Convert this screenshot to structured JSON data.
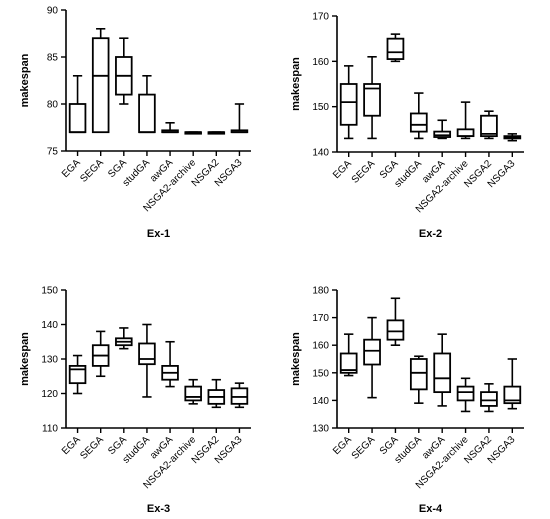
{
  "chart_data": [
    {
      "type": "box",
      "title": "Ex-1",
      "ylabel": "makespan",
      "ylim": [
        75,
        90
      ],
      "yticks": [
        75,
        80,
        85,
        90
      ],
      "categories": [
        "EGA",
        "SEGA",
        "SGA",
        "studGA",
        "awGA",
        "NSGA2-archive",
        "NSGA2",
        "NSGA3"
      ],
      "boxes": [
        {
          "min": 77,
          "q1": 77,
          "median": 77,
          "q3": 80,
          "max": 83
        },
        {
          "min": 77,
          "q1": 77,
          "median": 83,
          "q3": 87,
          "max": 88
        },
        {
          "min": 80,
          "q1": 81,
          "median": 83,
          "q3": 85,
          "max": 87
        },
        {
          "min": 77,
          "q1": 77,
          "median": 77,
          "q3": 81,
          "max": 83
        },
        {
          "min": 77,
          "q1": 77,
          "median": 77,
          "q3": 77.2,
          "max": 78
        },
        {
          "min": 77,
          "q1": 77,
          "median": 77,
          "q3": 77,
          "max": 77
        },
        {
          "min": 77,
          "q1": 77,
          "median": 77,
          "q3": 77,
          "max": 77
        },
        {
          "min": 77,
          "q1": 77,
          "median": 77,
          "q3": 77.2,
          "max": 80
        }
      ]
    },
    {
      "type": "box",
      "title": "Ex-2",
      "ylabel": "makespan",
      "ylim": [
        140,
        170
      ],
      "yticks": [
        140,
        150,
        160,
        170
      ],
      "categories": [
        "EGA",
        "SEGA",
        "SGA",
        "studGA",
        "awGA",
        "NSGA2-archive",
        "NSGA2",
        "NSGA3"
      ],
      "boxes": [
        {
          "min": 143,
          "q1": 146,
          "median": 151,
          "q3": 155,
          "max": 159
        },
        {
          "min": 143,
          "q1": 148,
          "median": 154,
          "q3": 155,
          "max": 161
        },
        {
          "min": 160,
          "q1": 160.5,
          "median": 162,
          "q3": 165,
          "max": 166
        },
        {
          "min": 143,
          "q1": 144.5,
          "median": 146,
          "q3": 148.5,
          "max": 153
        },
        {
          "min": 143,
          "q1": 143.3,
          "median": 143.7,
          "q3": 144.5,
          "max": 147
        },
        {
          "min": 143,
          "q1": 143.5,
          "median": 143.5,
          "q3": 145,
          "max": 151
        },
        {
          "min": 143,
          "q1": 143.5,
          "median": 144,
          "q3": 148,
          "max": 149
        },
        {
          "min": 142.5,
          "q1": 143,
          "median": 143.2,
          "q3": 143.5,
          "max": 144
        }
      ]
    },
    {
      "type": "box",
      "title": "Ex-3",
      "ylabel": "makespan",
      "ylim": [
        110,
        150
      ],
      "yticks": [
        110,
        120,
        130,
        140,
        150
      ],
      "categories": [
        "EGA",
        "SEGA",
        "SGA",
        "studGA",
        "awGA",
        "NSGA2-archive",
        "NSGA2",
        "NSGA3"
      ],
      "boxes": [
        {
          "min": 120,
          "q1": 123,
          "median": 127,
          "q3": 128,
          "max": 131
        },
        {
          "min": 125,
          "q1": 128,
          "median": 131,
          "q3": 134,
          "max": 138
        },
        {
          "min": 133,
          "q1": 134,
          "median": 135,
          "q3": 136,
          "max": 139
        },
        {
          "min": 119,
          "q1": 128.5,
          "median": 130,
          "q3": 134.5,
          "max": 140
        },
        {
          "min": 122,
          "q1": 124,
          "median": 126,
          "q3": 128,
          "max": 135
        },
        {
          "min": 117,
          "q1": 118,
          "median": 119,
          "q3": 122,
          "max": 124
        },
        {
          "min": 116,
          "q1": 117,
          "median": 119,
          "q3": 121,
          "max": 124
        },
        {
          "min": 116,
          "q1": 117,
          "median": 119,
          "q3": 121.5,
          "max": 123
        }
      ]
    },
    {
      "type": "box",
      "title": "Ex-4",
      "ylabel": "makespan",
      "ylim": [
        130,
        180
      ],
      "yticks": [
        130,
        140,
        150,
        160,
        170,
        180
      ],
      "categories": [
        "EGA",
        "SEGA",
        "SGA",
        "studGA",
        "awGA",
        "NSGA2-archive",
        "NSGA2",
        "NSGA3"
      ],
      "boxes": [
        {
          "min": 149,
          "q1": 150,
          "median": 151,
          "q3": 157,
          "max": 164
        },
        {
          "min": 141,
          "q1": 153,
          "median": 158,
          "q3": 162,
          "max": 170
        },
        {
          "min": 160,
          "q1": 162,
          "median": 165,
          "q3": 169,
          "max": 177
        },
        {
          "min": 139,
          "q1": 144,
          "median": 150,
          "q3": 155,
          "max": 156
        },
        {
          "min": 138,
          "q1": 143,
          "median": 148,
          "q3": 157,
          "max": 164
        },
        {
          "min": 136,
          "q1": 140,
          "median": 143,
          "q3": 145,
          "max": 148
        },
        {
          "min": 136,
          "q1": 138,
          "median": 140,
          "q3": 143,
          "max": 146
        },
        {
          "min": 137,
          "q1": 139,
          "median": 140,
          "q3": 145,
          "max": 155
        }
      ]
    }
  ]
}
